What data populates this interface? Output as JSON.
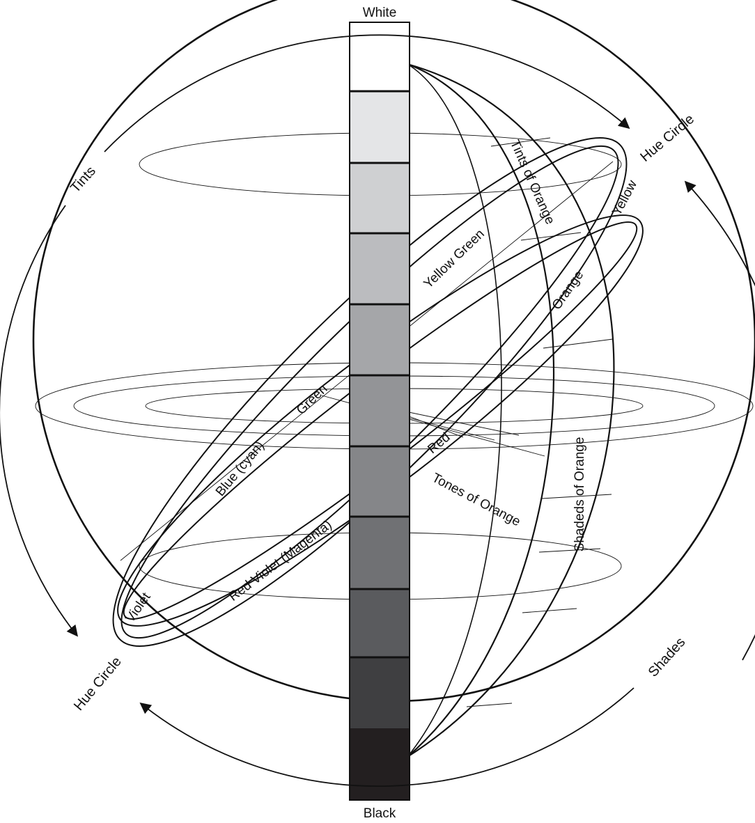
{
  "colors": {
    "outline": "#111111",
    "background": "#ffffff",
    "gray_scale": [
      "#ffffff",
      "#e4e5e7",
      "#cfd0d2",
      "#bbbcbf",
      "#a5a6a9",
      "#939497",
      "#858689",
      "#707174",
      "#5a5b5e",
      "#3f3f41",
      "#231f20"
    ]
  },
  "labels": {
    "white": "White",
    "black": "Black",
    "tints": "Tints",
    "shades": "Shades",
    "hue_circle_top": "Hue Circle",
    "hue_circle_bottom": "Hue Circle",
    "tints_of_orange": "Tints of Orange",
    "shades_of_orange": "Shadeds of Orange",
    "tones_of_orange": "Tones of Orange",
    "yellow": "Yellow",
    "orange": "Orange",
    "yellow_green": "Yellow Green",
    "green": "Green",
    "blue_cyan": "Blue (cyan)",
    "red": "Red",
    "red_violet": "Red Violet (Magenta)",
    "violet": "Violet"
  }
}
